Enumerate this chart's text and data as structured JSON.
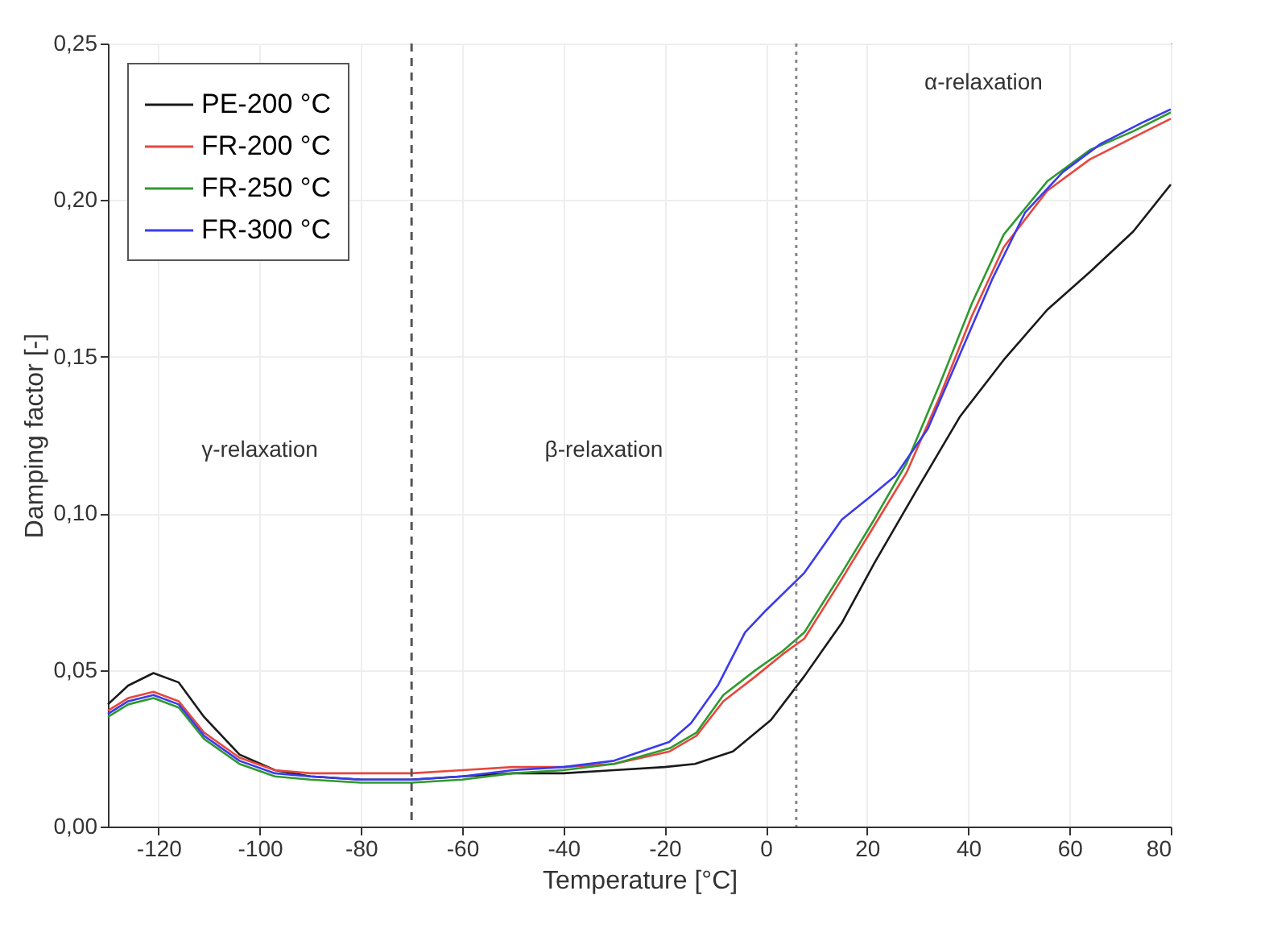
{
  "chart_data": {
    "type": "line",
    "xlabel": "Temperature [°C]",
    "ylabel": "Damping factor [-]",
    "xlim": [
      -130,
      80
    ],
    "xticks": [
      -120,
      -100,
      -80,
      -60,
      -40,
      -20,
      0,
      20,
      40,
      60,
      80
    ],
    "ylim": [
      0,
      0.25
    ],
    "yticks": [
      {
        "value": 0,
        "label": "0,00"
      },
      {
        "value": 0.05,
        "label": "0,05"
      },
      {
        "value": 0.1,
        "label": "0,10"
      },
      {
        "value": 0.15,
        "label": "0,15"
      },
      {
        "value": 0.2,
        "label": "0,20"
      },
      {
        "value": 0.25,
        "label": "0,25"
      }
    ],
    "grid": true,
    "legend": "top left",
    "line_style": "solid",
    "series": [
      {
        "name": "PE-200 °C",
        "color": "#1a1a1a",
        "x": [
          -130,
          -126,
          -121,
          -116,
          -111,
          -104,
          -97,
          -90,
          -80,
          -70,
          -60,
          -50,
          -40,
          -30,
          -20,
          -14,
          -6.5,
          1,
          7.6,
          15,
          21.4,
          30,
          38.4,
          47,
          55.6,
          64,
          72.6,
          80
        ],
        "values": [
          0.039,
          0.045,
          0.049,
          0.046,
          0.035,
          0.023,
          0.018,
          0.016,
          0.015,
          0.015,
          0.016,
          0.017,
          0.017,
          0.018,
          0.019,
          0.02,
          0.024,
          0.034,
          0.048,
          0.065,
          0.084,
          0.108,
          0.131,
          0.149,
          0.165,
          0.177,
          0.19,
          0.205
        ]
      },
      {
        "name": "FR-200 °C",
        "color": "#e8463c",
        "x": [
          -130,
          -126,
          -121,
          -116,
          -111,
          -104,
          -97,
          -90,
          -80,
          -70,
          -60,
          -50,
          -40,
          -30,
          -19,
          -13.7,
          -8.4,
          -2,
          3.3,
          7.6,
          15,
          21.4,
          27.8,
          34.3,
          40.7,
          47,
          55.6,
          64,
          72.6,
          80
        ],
        "values": [
          0.037,
          0.041,
          0.043,
          0.04,
          0.03,
          0.022,
          0.018,
          0.017,
          0.017,
          0.017,
          0.018,
          0.019,
          0.019,
          0.02,
          0.024,
          0.029,
          0.04,
          0.048,
          0.055,
          0.06,
          0.079,
          0.096,
          0.113,
          0.137,
          0.163,
          0.185,
          0.203,
          0.213,
          0.22,
          0.226
        ]
      },
      {
        "name": "FR-250 °C",
        "color": "#2e9a2e",
        "x": [
          -130,
          -126,
          -121,
          -116,
          -111,
          -104,
          -97,
          -90,
          -80,
          -70,
          -60,
          -50,
          -40,
          -30,
          -19,
          -13.7,
          -8.4,
          -2,
          3.3,
          7.6,
          15,
          21.4,
          27.8,
          34.3,
          40.7,
          47,
          55.6,
          64,
          72.6,
          80
        ],
        "values": [
          0.035,
          0.039,
          0.041,
          0.038,
          0.028,
          0.02,
          0.016,
          0.015,
          0.014,
          0.014,
          0.015,
          0.017,
          0.018,
          0.02,
          0.025,
          0.03,
          0.042,
          0.05,
          0.056,
          0.062,
          0.081,
          0.098,
          0.116,
          0.141,
          0.167,
          0.189,
          0.206,
          0.216,
          0.222,
          0.228
        ]
      },
      {
        "name": "FR-300 °C",
        "color": "#3a3aee",
        "x": [
          -130,
          -126,
          -121,
          -116,
          -111,
          -104,
          -97,
          -90,
          -80,
          -70,
          -60,
          -50,
          -40,
          -30,
          -19.1,
          -14.8,
          -9.5,
          -4.1,
          0,
          7.6,
          15,
          20.4,
          25.6,
          32,
          38.4,
          44.8,
          51.2,
          58.7,
          66.2,
          74.7,
          80
        ],
        "values": [
          0.036,
          0.04,
          0.042,
          0.039,
          0.029,
          0.021,
          0.017,
          0.016,
          0.015,
          0.015,
          0.016,
          0.018,
          0.019,
          0.021,
          0.027,
          0.033,
          0.045,
          0.062,
          0.069,
          0.081,
          0.098,
          0.105,
          0.112,
          0.127,
          0.151,
          0.175,
          0.196,
          0.209,
          0.218,
          0.225,
          0.229
        ]
      }
    ],
    "ref_lines": [
      {
        "axis": "x",
        "value": -70,
        "color": "#555555",
        "line_style": "dashed"
      },
      {
        "axis": "x",
        "value": 6,
        "color": "#888888",
        "line_style": "dotted"
      }
    ],
    "annotations": [
      "γ-relaxation",
      "β-relaxation",
      "α-relaxation"
    ]
  }
}
